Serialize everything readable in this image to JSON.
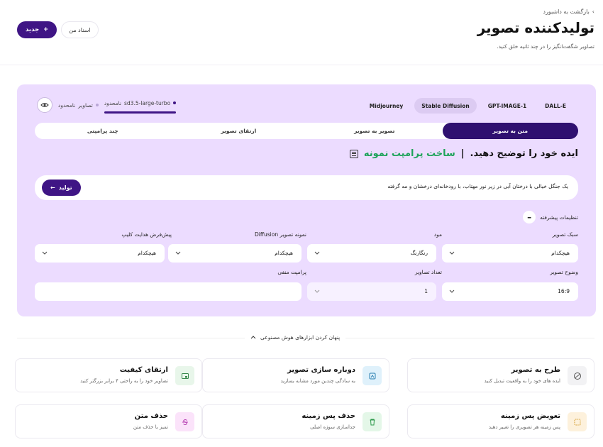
{
  "header": {
    "back_label": "بازگشت به داشبورد",
    "title": "تولیدکننده تصویر",
    "subtitle": "تصاویر شگفت‌انگیز را در چند ثانیه خلق کنید.",
    "new_button": "جدید",
    "docs_button": "اسناد من"
  },
  "models": [
    "DALL-E",
    "GPT-IMAGE-1",
    "Stable Diffusion",
    "Midjourney"
  ],
  "active_model": "Stable Diffusion",
  "meta": {
    "model_name": "sd3.5-large-turbo",
    "model_quota": "نامحدود",
    "images_label": "تصاویر",
    "images_quota": "نامحدود"
  },
  "tabs": [
    "متن به تصویر",
    "تصویر به تصویر",
    "ارتقای تصویر",
    "چند پرامپتی"
  ],
  "prompt": {
    "heading": "ایده خود را توضیح دهید.",
    "sample_link": "ساخت پرامپت نمونه",
    "text": "یک جنگل خیالی با درختان آبی در زیر نور مهتاب، با رودخانه‌ای درخشان و مه گرفته",
    "generate_button": "تولید"
  },
  "advanced": {
    "label": "تنظیمات پیشرفته",
    "fields": {
      "style": {
        "label": "سبک تصویر",
        "value": "هیچکدام"
      },
      "mood": {
        "label": "مود",
        "value": "رنگارنگ"
      },
      "diffusion": {
        "label": "نمونه تصویر Diffusion",
        "value": "هیچکدام"
      },
      "clip": {
        "label": "پیش‌فرض هدایت کلیپ",
        "value": "هیچکدام"
      },
      "resolution": {
        "label": "وضوح تصویر",
        "value": "16:9"
      },
      "count": {
        "label": "تعداد تصاویر",
        "value": "1"
      },
      "negative": {
        "label": "پرامپت منفی",
        "value": ""
      }
    }
  },
  "tools_toggle": "پنهان کردن ابزارهای هوش مصنوعی",
  "tools": [
    {
      "title": "طرح به تصویر",
      "subtitle": "ایده های خود را به واقعیت تبدیل کنید",
      "icon": "sketch-icon",
      "color": "#f2f2f4"
    },
    {
      "title": "دوباره سازی تصویر",
      "subtitle": "به سادگی چندین مورد مشابه بسازید",
      "icon": "recreate-icon",
      "color": "#dff1fb"
    },
    {
      "title": "ارتقای کیفیت",
      "subtitle": "تصاویر خود را به راحتی ۴ برابر بزرگتر کنید",
      "icon": "upscale-icon",
      "color": "#e8f6ea"
    },
    {
      "title": "تعویض پس زمینه",
      "subtitle": "پس زمینه هر تصویری را تغییر دهید",
      "icon": "replace-bg-icon",
      "color": "#fdf1dc"
    },
    {
      "title": "حذف پس زمینه",
      "subtitle": "جداسازی سوژه اصلی",
      "icon": "remove-bg-icon",
      "color": "#e4f7e8"
    },
    {
      "title": "حذف متن",
      "subtitle": "تمیز با حذف متن",
      "icon": "remove-text-icon",
      "color": "#fbe3fa"
    }
  ]
}
